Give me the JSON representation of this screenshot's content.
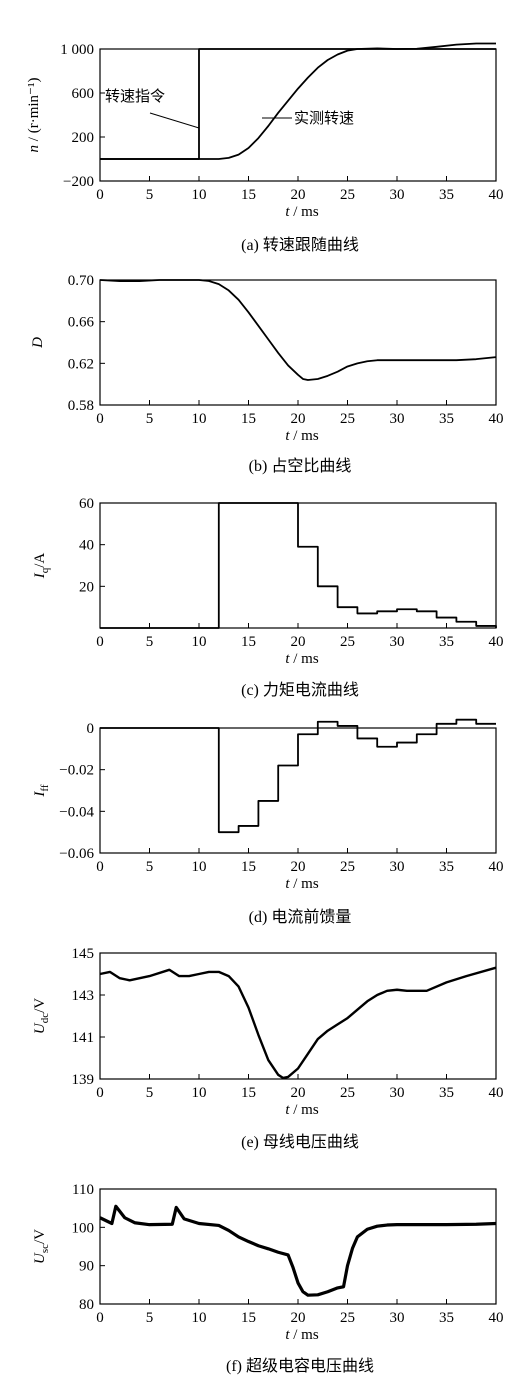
{
  "chart_data": [
    {
      "type": "line",
      "caption": "(a)  转速跟随曲线",
      "xlabel_var": "t",
      "xlabel_unit": " / ms",
      "ylabel": "n / (r·min⁻¹)",
      "xlim": [
        0,
        40
      ],
      "ylim": [
        -200,
        1000
      ],
      "xticks": [
        0,
        5,
        10,
        15,
        20,
        25,
        30,
        35,
        40
      ],
      "yticks": [
        -200,
        200,
        600,
        1000
      ],
      "ytick_labels": [
        "−200",
        "200",
        "600",
        "1 000"
      ],
      "series": [
        {
          "name": "转速指令",
          "step": true,
          "x": [
            0,
            10,
            10,
            40
          ],
          "y": [
            0,
            0,
            1000,
            1000
          ]
        },
        {
          "name": "实测转速",
          "x": [
            0,
            10,
            12,
            13,
            14,
            15,
            16,
            17,
            18,
            19,
            20,
            21,
            22,
            23,
            24,
            25,
            26,
            28,
            30,
            32,
            34,
            36,
            38,
            40
          ],
          "y": [
            0,
            0,
            0,
            10,
            40,
            100,
            190,
            300,
            420,
            530,
            640,
            740,
            830,
            900,
            950,
            985,
            1000,
            1005,
            1000,
            1002,
            1020,
            1040,
            1050,
            1050
          ]
        }
      ],
      "annotations": [
        "转速指令",
        "实测转速"
      ]
    },
    {
      "type": "line",
      "caption": "(b)  占空比曲线",
      "xlabel_var": "t",
      "xlabel_unit": " / ms",
      "ylabel": "D",
      "xlim": [
        0,
        40
      ],
      "ylim": [
        0.58,
        0.7
      ],
      "xticks": [
        0,
        5,
        10,
        15,
        20,
        25,
        30,
        35,
        40
      ],
      "yticks": [
        0.58,
        0.62,
        0.66,
        0.7
      ],
      "ytick_labels": [
        "0.58",
        "0.62",
        "0.66",
        "0.70"
      ],
      "series": [
        {
          "x": [
            0,
            2,
            4,
            6,
            8,
            10,
            11,
            12,
            13,
            14,
            15,
            16,
            17,
            18,
            19,
            20,
            20.5,
            21,
            22,
            23,
            24,
            25,
            26,
            27,
            28,
            30,
            32,
            34,
            36,
            38,
            40
          ],
          "y": [
            0.7,
            0.699,
            0.699,
            0.7,
            0.7,
            0.7,
            0.699,
            0.696,
            0.69,
            0.681,
            0.669,
            0.656,
            0.643,
            0.63,
            0.618,
            0.609,
            0.605,
            0.604,
            0.605,
            0.608,
            0.612,
            0.617,
            0.62,
            0.622,
            0.623,
            0.623,
            0.623,
            0.623,
            0.623,
            0.624,
            0.626
          ]
        }
      ]
    },
    {
      "type": "line",
      "caption": "(c)  力矩电流曲线",
      "xlabel_var": "t",
      "xlabel_unit": " / ms",
      "ylabel": "Iq/A",
      "xlim": [
        0,
        40
      ],
      "ylim": [
        0,
        60
      ],
      "xticks": [
        0,
        5,
        10,
        15,
        20,
        25,
        30,
        35,
        40
      ],
      "yticks": [
        20,
        40,
        60
      ],
      "ytick_labels": [
        "20",
        "40",
        "60"
      ],
      "series": [
        {
          "step": true,
          "x": [
            0,
            12,
            20,
            22,
            24,
            26,
            28,
            30,
            32,
            34,
            36,
            38,
            40
          ],
          "y": [
            0,
            60,
            39,
            20,
            10,
            7,
            8,
            9,
            8,
            5,
            3,
            1,
            0
          ]
        }
      ]
    },
    {
      "type": "line",
      "caption": "(d)  电流前馈量",
      "xlabel_var": "t",
      "xlabel_unit": " / ms",
      "ylabel": "Iff",
      "xlim": [
        0,
        40
      ],
      "ylim": [
        -0.06,
        0
      ],
      "xticks": [
        0,
        5,
        10,
        15,
        20,
        25,
        30,
        35,
        40
      ],
      "yticks": [
        -0.06,
        -0.04,
        -0.02,
        0
      ],
      "ytick_labels": [
        "−0.06",
        "−0.04",
        "−0.02",
        "0"
      ],
      "series": [
        {
          "step": true,
          "x": [
            0,
            12,
            14,
            16,
            18,
            20,
            22,
            24,
            26,
            28,
            30,
            32,
            34,
            36,
            38,
            40
          ],
          "y": [
            0,
            -0.05,
            -0.047,
            -0.035,
            -0.018,
            -0.003,
            0.003,
            0.001,
            -0.005,
            -0.009,
            -0.007,
            -0.003,
            0.002,
            0.004,
            0.002,
            0.002
          ]
        }
      ]
    },
    {
      "type": "line",
      "caption": "(e)  母线电压曲线",
      "xlabel_var": "t",
      "xlabel_unit": " / ms",
      "ylabel": "Udc/V",
      "xlim": [
        0,
        40
      ],
      "ylim": [
        139,
        145
      ],
      "xticks": [
        0,
        5,
        10,
        15,
        20,
        25,
        30,
        35,
        40
      ],
      "yticks": [
        139,
        141,
        143,
        145
      ],
      "ytick_labels": [
        "139",
        "141",
        "143",
        "145"
      ],
      "series": [
        {
          "x": [
            0,
            1,
            2,
            3,
            5,
            7,
            8,
            9,
            10,
            11,
            12,
            13,
            14,
            15,
            16,
            17,
            18,
            18.5,
            19,
            20,
            21,
            22,
            23,
            24,
            25,
            26,
            27,
            28,
            29,
            30,
            31,
            33,
            35,
            37,
            40
          ],
          "y": [
            144.0,
            144.1,
            143.8,
            143.7,
            143.9,
            144.2,
            143.9,
            143.9,
            144.0,
            144.1,
            144.1,
            143.9,
            143.4,
            142.4,
            141.1,
            139.9,
            139.2,
            139.05,
            139.1,
            139.5,
            140.2,
            140.9,
            141.3,
            141.6,
            141.9,
            142.3,
            142.7,
            143.0,
            143.2,
            143.25,
            143.2,
            143.2,
            143.6,
            143.9,
            144.3
          ]
        }
      ]
    },
    {
      "type": "line",
      "caption": "(f)  超级电容电压曲线",
      "xlabel_var": "t",
      "xlabel_unit": " / ms",
      "ylabel": "Usc/V",
      "xlim": [
        0,
        40
      ],
      "ylim": [
        80,
        110
      ],
      "xticks": [
        0,
        5,
        10,
        15,
        20,
        25,
        30,
        35,
        40
      ],
      "yticks": [
        80,
        90,
        100,
        110
      ],
      "ytick_labels": [
        "80",
        "90",
        "100",
        "110"
      ],
      "series": [
        {
          "x": [
            0,
            1.2,
            1.6,
            2.5,
            3.5,
            5,
            7.3,
            7.7,
            8.5,
            10,
            12,
            13,
            14,
            15,
            16,
            17,
            18,
            19,
            19.5,
            20,
            20.5,
            21,
            22,
            23,
            24,
            24.6,
            25,
            25.5,
            26,
            27,
            28,
            29,
            30,
            32,
            35,
            38,
            40
          ],
          "y": [
            102.5,
            101,
            105.5,
            102.5,
            101.2,
            100.7,
            100.8,
            105.2,
            102.2,
            101.0,
            100.5,
            99.2,
            97.5,
            96.3,
            95.2,
            94.4,
            93.5,
            92.8,
            89.5,
            85.5,
            83.2,
            82.3,
            82.4,
            83.2,
            84.2,
            84.5,
            90,
            94.5,
            97.5,
            99.5,
            100.3,
            100.6,
            100.7,
            100.7,
            100.7,
            100.8,
            101.0
          ]
        }
      ]
    }
  ]
}
